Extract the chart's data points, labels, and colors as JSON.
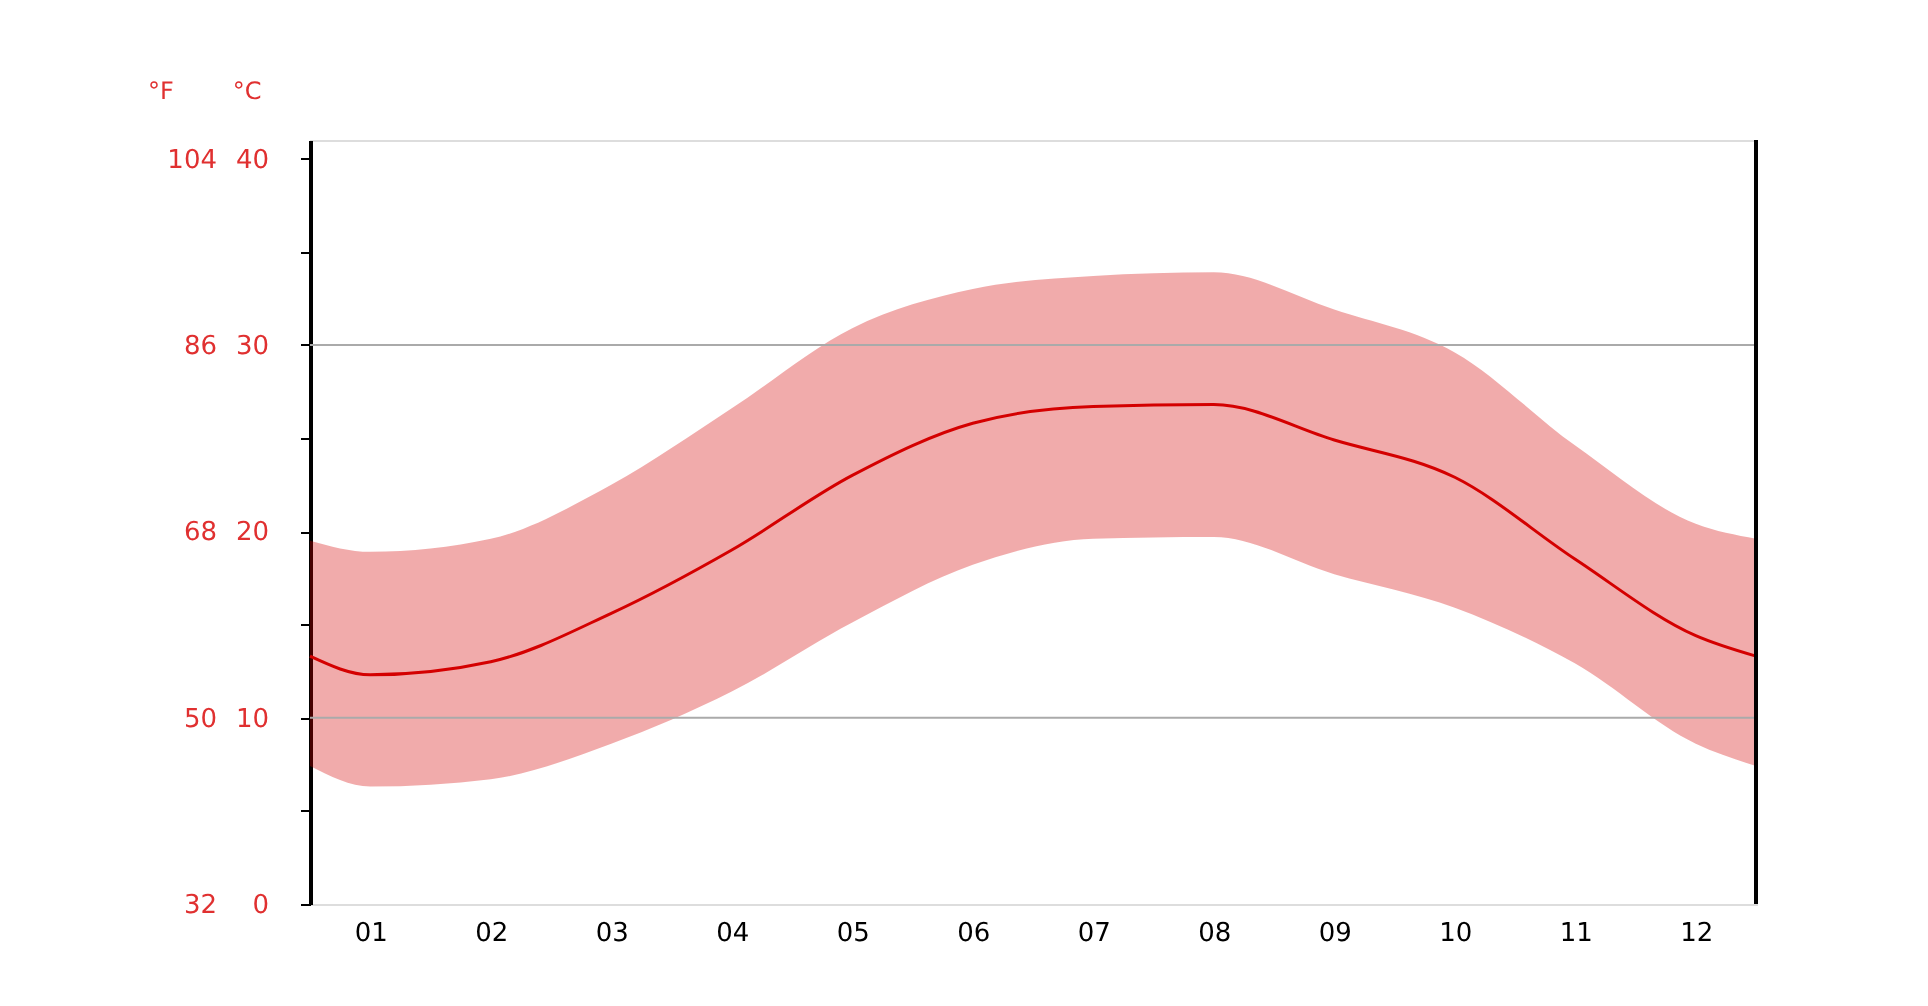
{
  "chart_data": {
    "type": "line",
    "ylabel": "°C",
    "y2label": "°F",
    "x": [
      0.5,
      1,
      2,
      3,
      4,
      5,
      6,
      7,
      8,
      9,
      10,
      11,
      12,
      12.5
    ],
    "xlim": [
      0.5,
      12.5
    ],
    "xticks": [
      {
        "value": 1,
        "label": "01"
      },
      {
        "value": 2,
        "label": "02"
      },
      {
        "value": 3,
        "label": "03"
      },
      {
        "value": 4,
        "label": "04"
      },
      {
        "value": 5,
        "label": "05"
      },
      {
        "value": 6,
        "label": "06"
      },
      {
        "value": 7,
        "label": "07"
      },
      {
        "value": 8,
        "label": "08"
      },
      {
        "value": 9,
        "label": "09"
      },
      {
        "value": 10,
        "label": "10"
      },
      {
        "value": 11,
        "label": "11"
      },
      {
        "value": 12,
        "label": "12"
      }
    ],
    "ylim": [
      0,
      41
    ],
    "yticks": [
      0,
      {
        "value": 5,
        "label": null
      },
      10,
      {
        "value": 15,
        "label": null
      },
      20,
      {
        "value": 25,
        "label": null
      },
      30,
      {
        "value": 35,
        "label": null
      },
      40
    ],
    "y2lim": [
      32,
      105.8
    ],
    "y2ticks": [
      32,
      50,
      68,
      86,
      104
    ],
    "series": [
      {
        "color": "#d40000",
        "values": [
          13.3,
          12.3,
          13.0,
          15.6,
          19.0,
          23.0,
          25.8,
          26.7,
          26.8,
          24.9,
          22.9,
          18.5,
          14.4,
          13.3
        ],
        "lower": [
          7.4,
          6.3,
          6.7,
          8.6,
          11.4,
          15.1,
          18.2,
          19.6,
          19.7,
          17.7,
          15.9,
          12.9,
          8.6,
          7.4
        ],
        "upper": [
          19.5,
          18.9,
          19.6,
          22.5,
          26.6,
          30.9,
          33.0,
          33.7,
          33.9,
          31.9,
          29.6,
          24.6,
          20.4,
          19.6
        ]
      }
    ],
    "ref_lines": [
      {
        "axis": "y",
        "value": 10,
        "color": "#aaaaaa"
      },
      {
        "axis": "y",
        "value": 30,
        "color": "#aaaaaa"
      }
    ],
    "grid": false
  }
}
